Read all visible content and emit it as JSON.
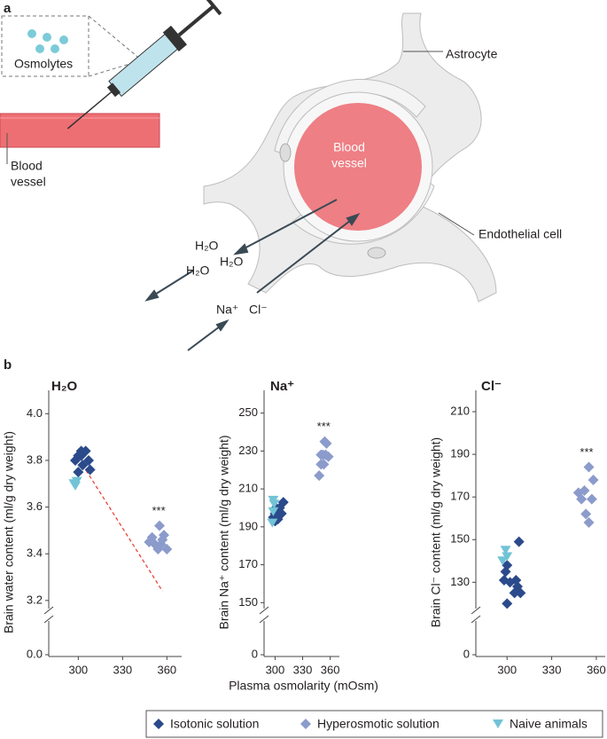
{
  "panel_a": {
    "label": "a",
    "osmolytes": "Osmolytes",
    "astrocyte": "Astrocyte",
    "endothelial": "Endothelial cell",
    "blood_vessel_left": [
      "Blood",
      "vessel"
    ],
    "blood_vessel_center": [
      "Blood",
      "vessel"
    ],
    "water": [
      "H₂O",
      "H₂O",
      "H₂O"
    ],
    "sodium": "Na⁺",
    "chloride": "Cl⁻"
  },
  "panel_b_label": "b",
  "chart_data": [
    {
      "type": "scatter",
      "title": "H₂O",
      "ylabel": "Brain water content (ml/g dry weight)",
      "annotation": "***",
      "xlim": [
        280,
        370
      ],
      "xticks": [
        300,
        330,
        360
      ],
      "ylim": [
        3.15,
        4.1
      ],
      "yticks": [
        3.2,
        3.4,
        3.6,
        3.8,
        {
          "value": 4.0,
          "label": "4.0"
        }
      ],
      "ybreak_tick": {
        "value": 0,
        "label": "0.0"
      },
      "trend": {
        "x": [
          303,
          357
        ],
        "y": [
          3.78,
          3.24
        ],
        "color": "#e8453c"
      },
      "series": [
        {
          "name": "Isotonic solution",
          "color": "#2b4a8b",
          "marker": "diamond",
          "x": [
            298,
            300,
            302,
            305,
            307,
            303,
            300,
            308,
            302
          ],
          "values": [
            3.8,
            3.82,
            3.84,
            3.84,
            3.8,
            3.78,
            3.75,
            3.76,
            3.82
          ]
        },
        {
          "name": "Hyperosmotic solution",
          "color": "#8b9bcb",
          "marker": "diamond",
          "x": [
            350,
            355,
            358,
            352,
            356,
            360,
            348,
            354,
            357
          ],
          "values": [
            3.47,
            3.52,
            3.48,
            3.44,
            3.44,
            3.42,
            3.45,
            3.42,
            3.46
          ]
        },
        {
          "name": "Naive animals",
          "color": "#72c3d6",
          "marker": "triangle",
          "x": [
            297,
            298,
            299
          ],
          "values": [
            3.7,
            3.69,
            3.71
          ]
        }
      ]
    },
    {
      "type": "scatter",
      "title": "Na⁺",
      "ylabel": "Brain Na⁺ content (ml/g dry weight)",
      "xlabel": "Plasma osmolarity (mOsm)",
      "annotation": "***",
      "xlim": [
        288,
        370
      ],
      "xticks": [
        300,
        330,
        360
      ],
      "ylim": [
        145,
        262
      ],
      "yticks": [
        150,
        170,
        190,
        210,
        230,
        250
      ],
      "ybreak_tick": 0,
      "series": [
        {
          "name": "Isotonic solution",
          "color": "#2b4a8b",
          "marker": "diamond",
          "x": [
            298,
            300,
            302,
            305,
            300,
            307,
            309,
            303,
            301
          ],
          "values": [
            195,
            197,
            198,
            200,
            193,
            197,
            203,
            194,
            200
          ]
        },
        {
          "name": "Hyperosmotic solution",
          "color": "#8b9bcb",
          "marker": "diamond",
          "x": [
            348,
            350,
            352,
            354,
            356,
            358,
            353,
            355,
            350
          ],
          "values": [
            217,
            223,
            228,
            235,
            234,
            227,
            223,
            228,
            228
          ]
        },
        {
          "name": "Naive animals",
          "color": "#72c3d6",
          "marker": "triangle",
          "x": [
            298,
            299,
            297,
            298
          ],
          "values": [
            204,
            202,
            192,
            198
          ]
        }
      ]
    },
    {
      "type": "scatter",
      "title": "Cl⁻",
      "ylabel": "Brain Cl⁻ content (ml/g dry weight)",
      "annotation": "***",
      "xlim": [
        279,
        366
      ],
      "xticks": [
        300,
        330,
        360
      ],
      "ylim": [
        116,
        220
      ],
      "yticks": [
        130,
        150,
        170,
        190,
        210
      ],
      "ybreak_tick": 0,
      "series": [
        {
          "name": "Isotonic solution",
          "color": "#2b4a8b",
          "marker": "diamond",
          "x": [
            300,
            298,
            299,
            300,
            302,
            305,
            307,
            308,
            306,
            309
          ],
          "values": [
            120,
            131,
            135,
            138,
            130,
            125,
            128,
            149,
            131,
            125
          ]
        },
        {
          "name": "Hyperosmotic solution",
          "color": "#8b9bcb",
          "marker": "diamond",
          "x": [
            348,
            350,
            352,
            355,
            358,
            357,
            353,
            355
          ],
          "values": [
            172,
            169,
            173,
            184,
            178,
            169,
            162,
            158
          ]
        },
        {
          "name": "Naive animals",
          "color": "#72c3d6",
          "marker": "triangle",
          "x": [
            297,
            299,
            300
          ],
          "values": [
            140,
            145,
            142
          ]
        }
      ]
    }
  ]
}
